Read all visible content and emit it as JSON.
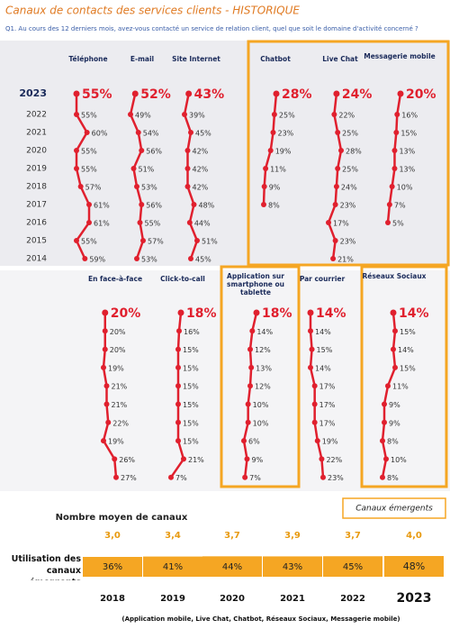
{
  "header": {
    "title": "Canaux de contacts des services clients - HISTORIQUE",
    "question": "Q1. Au cours des 12 derniers mois, avez-vous contacté un service de relation client, quel que soit le domaine d'activité concerné ?"
  },
  "years": [
    "2023",
    "2022",
    "2021",
    "2020",
    "2019",
    "2018",
    "2017",
    "2016",
    "2015",
    "2014"
  ],
  "top_channels": [
    {
      "name": "Téléphone",
      "values": [
        55,
        55,
        60,
        55,
        55,
        57,
        61,
        61,
        55,
        59
      ],
      "value_labels": [
        "55%",
        "55%",
        "60%",
        "55%",
        "55%",
        "57%",
        "61%",
        "61%",
        "55%",
        "59%"
      ]
    },
    {
      "name": "E-mail",
      "values": [
        52,
        49,
        54,
        56,
        51,
        53,
        56,
        55,
        57,
        53
      ],
      "value_labels": [
        "52%",
        "49%",
        "54%",
        "56%",
        "51%",
        "53%",
        "56%",
        "55%",
        "57%",
        "53%"
      ]
    },
    {
      "name": "Site Internet",
      "values": [
        43,
        39,
        45,
        42,
        42,
        42,
        48,
        44,
        51,
        45
      ],
      "value_labels": [
        "43%",
        "39%",
        "45%",
        "42%",
        "42%",
        "42%",
        "48%",
        "44%",
        "51%",
        "45%"
      ]
    },
    {
      "name": "Chatbot",
      "values": [
        28,
        25,
        23,
        19,
        11,
        9,
        8
      ],
      "value_labels": [
        "28%",
        "25%",
        "23%",
        "19%",
        "11%",
        "9%",
        "8%"
      ]
    },
    {
      "name": "Live Chat",
      "values": [
        24,
        22,
        25,
        28,
        25,
        24,
        23,
        17,
        23,
        21
      ],
      "value_labels": [
        "24%",
        "22%",
        "25%",
        "28%",
        "25%",
        "24%",
        "23%",
        "17%",
        "23%",
        "21%"
      ]
    },
    {
      "name": "Messagerie mobile",
      "values": [
        20,
        16,
        15,
        13,
        13,
        10,
        7,
        5
      ],
      "value_labels": [
        "20%",
        "16%",
        "15%",
        "13%",
        "13%",
        "10%",
        "7%",
        "5%"
      ]
    }
  ],
  "bottom_channels": [
    {
      "name": "En face-à-face",
      "values": [
        20,
        20,
        20,
        19,
        21,
        21,
        22,
        19,
        26,
        27
      ],
      "value_labels": [
        "20%",
        "20%",
        "20%",
        "19%",
        "21%",
        "21%",
        "22%",
        "19%",
        "26%",
        "27%"
      ]
    },
    {
      "name": "Click-to-call",
      "values": [
        18,
        16,
        15,
        15,
        15,
        15,
        15,
        15,
        21,
        7
      ],
      "value_labels": [
        "18%",
        "16%",
        "15%",
        "15%",
        "15%",
        "15%",
        "15%",
        "15%",
        "21%",
        "7%"
      ]
    },
    {
      "name": "Application sur smartphone ou tablette",
      "values": [
        18,
        14,
        12,
        13,
        12,
        10,
        10,
        6,
        9,
        7
      ],
      "value_labels": [
        "18%",
        "14%",
        "12%",
        "13%",
        "12%",
        "10%",
        "10%",
        "6%",
        "9%",
        "7%"
      ]
    },
    {
      "name": "Par courrier",
      "values": [
        14,
        14,
        15,
        14,
        17,
        17,
        17,
        19,
        22,
        23
      ],
      "value_labels": [
        "14%",
        "14%",
        "15%",
        "14%",
        "17%",
        "17%",
        "17%",
        "19%",
        "22%",
        "23%"
      ]
    },
    {
      "name": "Réseaux Sociaux",
      "values": [
        14,
        15,
        14,
        15,
        11,
        9,
        9,
        8,
        10,
        8
      ],
      "value_labels": [
        "14%",
        "15%",
        "14%",
        "15%",
        "11%",
        "9%",
        "9%",
        "8%",
        "10%",
        "8%"
      ]
    }
  ],
  "footer": {
    "average_title": "Nombre moyen de canaux",
    "emerging_box": "Canaux émergents",
    "usage_title": "Utilisation des canaux émergents",
    "years": [
      "2018",
      "2019",
      "2020",
      "2021",
      "2022",
      "2023"
    ],
    "averages": [
      "3,0",
      "3,4",
      "3,7",
      "3,9",
      "3,7",
      "4,0"
    ],
    "usage": [
      36,
      41,
      44,
      43,
      45,
      48
    ],
    "usage_labels": [
      "36%",
      "41%",
      "44%",
      "43%",
      "45%",
      "48%"
    ],
    "note": "(Application mobile, Live Chat, Chatbot, Réseaux Sociaux, Messagerie mobile)"
  }
}
